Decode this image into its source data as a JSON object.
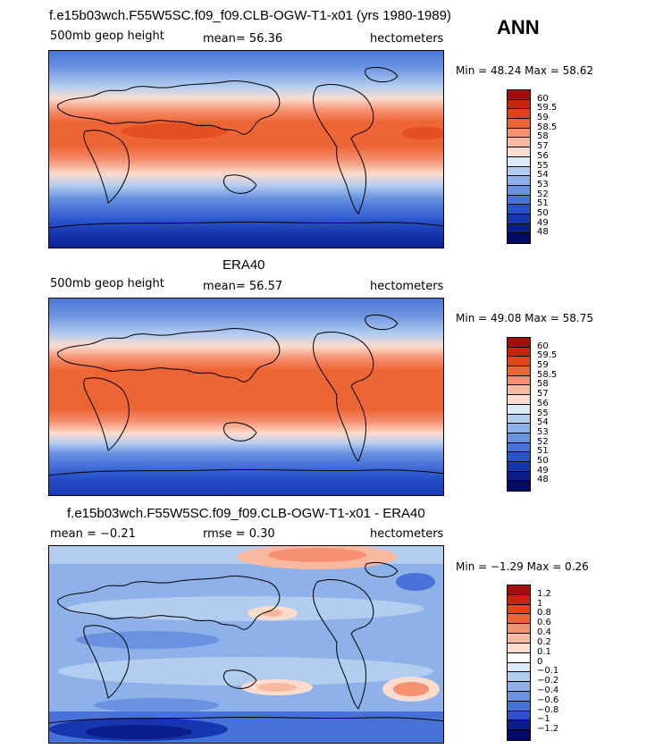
{
  "season": "ANN",
  "panels": [
    {
      "title": "f.e15b03wch.F55W5SC.f09_f09.CLB-OGW-T1-x01 (yrs 1980-1989)",
      "left_label": "500mb geop height",
      "center_label": "mean=  56.36",
      "units": "hectometers",
      "minmax": "Min =  48.24  Max =  58.62",
      "colorbar": {
        "labels": [
          "60",
          "59.5",
          "59",
          "58.5",
          "58",
          "57",
          "56",
          "55",
          "54",
          "53",
          "52",
          "51",
          "50",
          "49",
          "48"
        ],
        "colors": [
          "#a50e0e",
          "#c8230f",
          "#e0451a",
          "#ee6535",
          "#f59070",
          "#f9b9a0",
          "#fcdcce",
          "#dce9f7",
          "#b3cdf0",
          "#8db1e8",
          "#6a92e0",
          "#4772d8",
          "#2952cc",
          "#1636b0",
          "#0a1d8a",
          "#000a66"
        ]
      }
    },
    {
      "title": "ERA40",
      "left_label": "500mb geop height",
      "center_label": "mean=  56.57",
      "units": "hectometers",
      "minmax": "Min =  49.08  Max =  58.75",
      "colorbar": {
        "labels": [
          "60",
          "59.5",
          "59",
          "58.5",
          "58",
          "57",
          "56",
          "55",
          "54",
          "53",
          "52",
          "51",
          "50",
          "49",
          "48"
        ],
        "colors": [
          "#a50e0e",
          "#c8230f",
          "#e0451a",
          "#ee6535",
          "#f59070",
          "#f9b9a0",
          "#fcdcce",
          "#dce9f7",
          "#b3cdf0",
          "#8db1e8",
          "#6a92e0",
          "#4772d8",
          "#2952cc",
          "#1636b0",
          "#0a1d8a",
          "#000a66"
        ]
      }
    },
    {
      "title": "f.e15b03wch.F55W5SC.f09_f09.CLB-OGW-T1-x01 - ERA40",
      "left_label": "mean =  −0.21",
      "center_label": "rmse =   0.30",
      "units": "hectometers",
      "minmax": "Min =  −1.29  Max =   0.26",
      "colorbar": {
        "labels": [
          "1.2",
          "1",
          "0.8",
          "0.6",
          "0.4",
          "0.2",
          "0.1",
          "0",
          "−0.1",
          "−0.2",
          "−0.4",
          "−0.6",
          "−0.8",
          "−1",
          "−1.2"
        ],
        "colors": [
          "#a50e0e",
          "#c8230f",
          "#e0451a",
          "#ee6535",
          "#f59070",
          "#f9b9a0",
          "#fcdcce",
          "#ffffff",
          "#dce9f7",
          "#b3cdf0",
          "#8db1e8",
          "#6a92e0",
          "#4772d8",
          "#2952cc",
          "#0a1d8a",
          "#000a66"
        ]
      }
    }
  ]
}
